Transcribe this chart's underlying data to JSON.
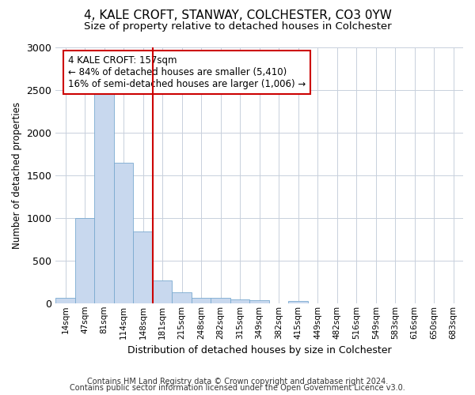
{
  "title": "4, KALE CROFT, STANWAY, COLCHESTER, CO3 0YW",
  "subtitle": "Size of property relative to detached houses in Colchester",
  "xlabel": "Distribution of detached houses by size in Colchester",
  "ylabel": "Number of detached properties",
  "categories": [
    "14sqm",
    "47sqm",
    "81sqm",
    "114sqm",
    "148sqm",
    "181sqm",
    "215sqm",
    "248sqm",
    "282sqm",
    "315sqm",
    "349sqm",
    "382sqm",
    "415sqm",
    "449sqm",
    "482sqm",
    "516sqm",
    "549sqm",
    "583sqm",
    "616sqm",
    "650sqm",
    "683sqm"
  ],
  "values": [
    60,
    1000,
    2470,
    1650,
    840,
    270,
    130,
    60,
    60,
    45,
    35,
    0,
    25,
    0,
    0,
    0,
    0,
    0,
    0,
    0,
    0
  ],
  "bar_color": "#c8d8ee",
  "bar_edge_color": "#7aaad0",
  "vline_x": 4.5,
  "vline_color": "#cc0000",
  "annotation_text": "4 KALE CROFT: 157sqm\n← 84% of detached houses are smaller (5,410)\n16% of semi-detached houses are larger (1,006) →",
  "annotation_box_color": "#ffffff",
  "annotation_box_edge": "#cc0000",
  "footer1": "Contains HM Land Registry data © Crown copyright and database right 2024.",
  "footer2": "Contains public sector information licensed under the Open Government Licence v3.0.",
  "ylim": [
    0,
    3000
  ],
  "yticks": [
    0,
    500,
    1000,
    1500,
    2000,
    2500,
    3000
  ],
  "background_color": "#ffffff",
  "plot_background": "#ffffff",
  "title_fontsize": 11,
  "subtitle_fontsize": 9.5
}
